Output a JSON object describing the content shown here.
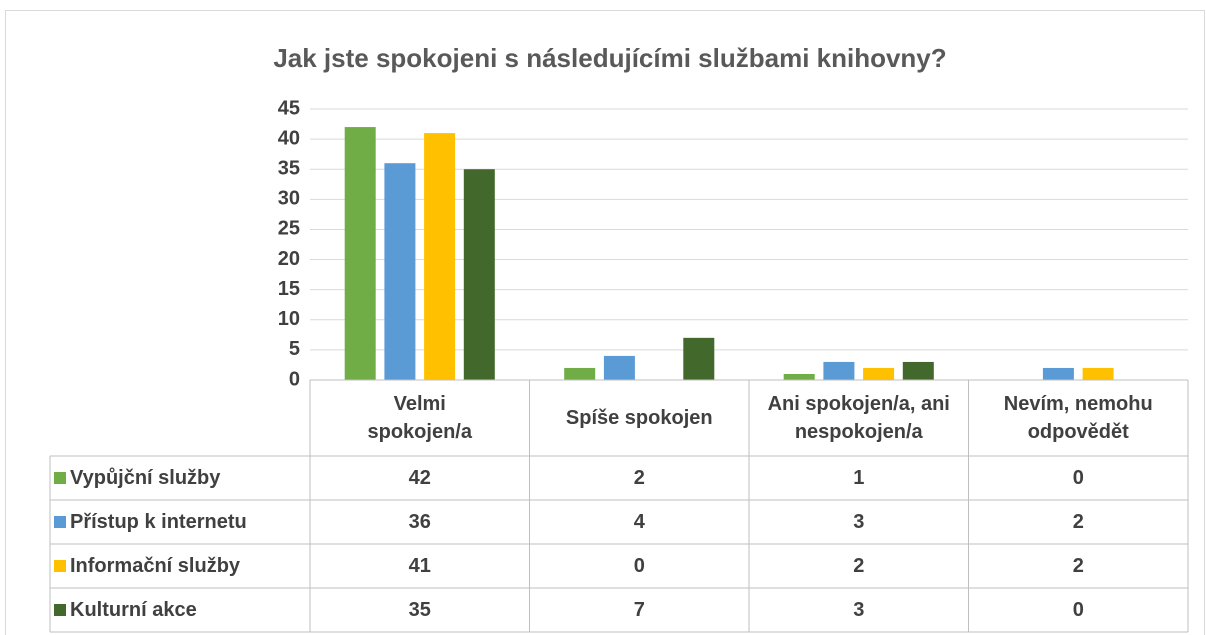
{
  "chart_data": {
    "type": "bar",
    "title": "Jak jste spokojeni s následujícími službami knihovny?",
    "categories": [
      "Velmi spokojen/a",
      "Spíše spokojen",
      "Ani spokojen/a, ani nespokojen/a",
      "Nevím, nemohu odpovědět"
    ],
    "series": [
      {
        "name": "Vypůjční služby",
        "color": "#70ad47",
        "values": [
          42,
          2,
          1,
          0
        ]
      },
      {
        "name": "Přístup k internetu",
        "color": "#5b9bd5",
        "values": [
          36,
          4,
          3,
          2
        ]
      },
      {
        "name": "Informační služby",
        "color": "#ffc000",
        "values": [
          41,
          0,
          2,
          2
        ]
      },
      {
        "name": "Kulturní akce",
        "color": "#43682b",
        "values": [
          35,
          7,
          3,
          0
        ]
      }
    ],
    "ylim": [
      0,
      45
    ],
    "yticks": [
      0,
      5,
      10,
      15,
      20,
      25,
      30,
      35,
      40,
      45
    ],
    "grid": true
  }
}
